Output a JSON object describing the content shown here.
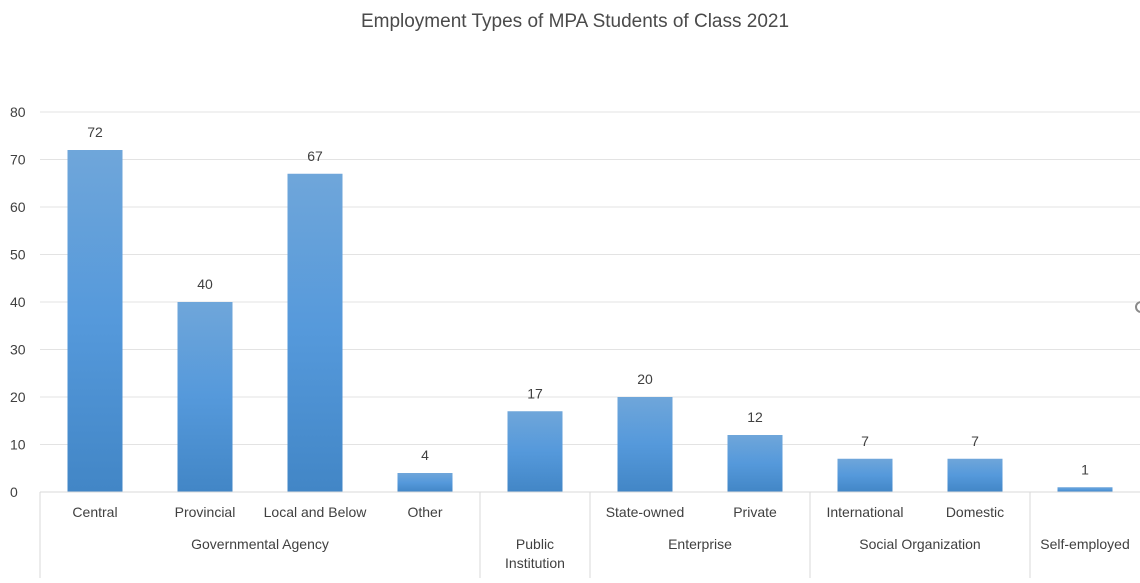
{
  "chart_data": {
    "type": "bar",
    "title": "Employment Types of MPA Students of Class 2021",
    "xlabel": "",
    "ylabel": "",
    "ylim": [
      0,
      80
    ],
    "yticks": [
      "0",
      "10",
      "20",
      "30",
      "40",
      "50",
      "60",
      "70",
      "80"
    ],
    "grid": true,
    "categories": [
      "Central",
      "Provincial",
      "Local  and Below",
      "Other",
      "",
      "State-owned",
      "Private",
      "International",
      "Domestic",
      ""
    ],
    "groups": [
      {
        "name": "Governmental Agency",
        "span": 4
      },
      {
        "name": "Public Institution",
        "span": 1
      },
      {
        "name": "Enterprise",
        "span": 2
      },
      {
        "name": "Social Organization",
        "span": 2
      },
      {
        "name": "Self-employed",
        "span": 1
      }
    ],
    "values": [
      72,
      40,
      67,
      4,
      17,
      20,
      12,
      7,
      7,
      1
    ],
    "bar_color": "#5B9BD5"
  }
}
